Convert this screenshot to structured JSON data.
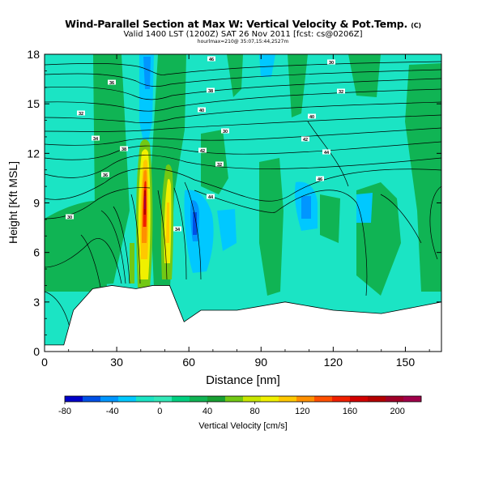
{
  "header": {
    "title": "Wind-Parallel Section at Max W: Vertical Velocity & Pot.Temp.",
    "title_mark": "(C)",
    "subtitle": "Valid 1400 LST (1200Z) SAT 26 Nov 2011 [fcst: cs@0206Z]",
    "info": "hourlmax=210@ 35:07,15:44,2527m"
  },
  "chart_data": {
    "type": "heatmap",
    "xlabel": "Distance [nm]",
    "ylabel": "Height [Kft MSL]",
    "xlim": [
      0,
      165
    ],
    "ylim": [
      0,
      18
    ],
    "x_ticks": [
      "0",
      "30",
      "60",
      "90",
      "120",
      "150"
    ],
    "x_tick_values": [
      0,
      30,
      60,
      90,
      120,
      150
    ],
    "y_ticks": [
      "0",
      "3",
      "6",
      "9",
      "12",
      "15",
      "18"
    ],
    "y_tick_values": [
      0,
      3,
      6,
      9,
      12,
      15,
      18
    ],
    "colorbar": {
      "label": "Vertical Velocity [cm/s]",
      "tick_labels": [
        "-80",
        "-40",
        "0",
        "40",
        "80",
        "120",
        "160",
        "200"
      ],
      "tick_values": [
        -80,
        -40,
        0,
        40,
        80,
        120,
        160,
        200
      ],
      "range": [
        -80,
        220
      ],
      "bin_colors": [
        "#0000c8",
        "#0050e6",
        "#0096ff",
        "#00c8ff",
        "#1be4c4",
        "#33e8b8",
        "#00d080",
        "#10b454",
        "#18a032",
        "#72c814",
        "#c8e600",
        "#f0f000",
        "#ffc800",
        "#ff9000",
        "#ff5000",
        "#f02000",
        "#d20000",
        "#b40000",
        "#a00028",
        "#a0004a"
      ]
    },
    "velocity_bands": [
      {
        "x": [
          44,
          47
        ],
        "z": [
          3.6,
          12.8
        ],
        "w": 210
      },
      {
        "x": [
          52,
          54
        ],
        "z": [
          4.5,
          11
        ],
        "w": 120
      },
      {
        "x": [
          38,
          40
        ],
        "z": [
          4,
          10
        ],
        "w": 40
      },
      {
        "x": [
          61,
          62
        ],
        "z": [
          7,
          9.5
        ],
        "w": -60
      },
      {
        "x": [
          110,
          117
        ],
        "z": [
          7,
          9.5
        ],
        "w": -30
      },
      {
        "x": [
          14,
          24
        ],
        "z": [
          4,
          8
        ],
        "w": 25
      }
    ],
    "terrain_top": {
      "x": [
        0,
        8,
        12,
        20,
        28,
        38,
        45,
        52,
        58,
        65,
        80,
        100,
        120,
        140,
        158,
        165
      ],
      "z": [
        0.4,
        0.4,
        2.5,
        3.8,
        4,
        3.8,
        4,
        4,
        1.8,
        2.5,
        2.5,
        3,
        2.5,
        2.3,
        2.8,
        3
      ]
    },
    "contour_labels": [
      "30",
      "32",
      "34",
      "36",
      "38",
      "40",
      "42",
      "44",
      "46"
    ]
  }
}
